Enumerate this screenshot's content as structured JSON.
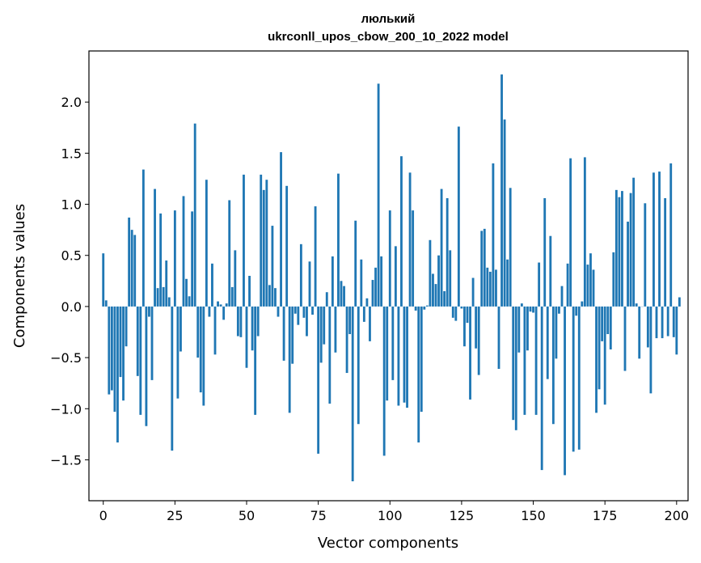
{
  "chart_data": {
    "type": "bar",
    "title_line1": "люлький",
    "title_line2": "ukrconll_upos_cbow_200_10_2022 model",
    "xlabel": "Vector components",
    "ylabel": "Components values",
    "xlim": [
      -5,
      204
    ],
    "ylim": [
      -1.9,
      2.5
    ],
    "xticks": [
      0,
      25,
      50,
      75,
      100,
      125,
      150,
      175,
      200
    ],
    "xtick_labels": [
      "0",
      "25",
      "50",
      "75",
      "100",
      "125",
      "150",
      "175",
      "200"
    ],
    "yticks": [
      -1.5,
      -1.0,
      -0.5,
      0.0,
      0.5,
      1.0,
      1.5,
      2.0
    ],
    "ytick_labels": [
      "−1.5",
      "−1.0",
      "−0.5",
      "0.0",
      "0.5",
      "1.0",
      "1.5",
      "2.0"
    ],
    "bar_color": "#1f77b4",
    "grid": false,
    "values": [
      0.52,
      0.06,
      -0.86,
      -0.82,
      -1.03,
      -1.33,
      -0.69,
      -0.92,
      -0.39,
      0.87,
      0.75,
      0.7,
      -0.68,
      -1.06,
      1.34,
      -1.17,
      -0.1,
      -0.72,
      1.15,
      0.18,
      0.91,
      0.19,
      0.45,
      0.09,
      -1.41,
      0.94,
      -0.9,
      -0.44,
      1.08,
      0.27,
      0.1,
      0.93,
      1.79,
      -0.5,
      -0.84,
      -0.97,
      1.24,
      -0.1,
      0.42,
      -0.47,
      0.05,
      0.02,
      -0.13,
      0.03,
      1.04,
      0.19,
      0.55,
      -0.29,
      -0.3,
      1.29,
      -0.6,
      0.3,
      -0.43,
      -1.06,
      -0.29,
      1.29,
      1.14,
      1.24,
      0.21,
      0.79,
      0.18,
      -0.1,
      1.51,
      -0.53,
      1.18,
      -1.04,
      -0.56,
      -0.07,
      -0.18,
      0.61,
      -0.11,
      -0.29,
      0.44,
      -0.08,
      0.98,
      -1.44,
      -0.55,
      -0.37,
      0.14,
      -0.95,
      0.49,
      -0.45,
      1.3,
      0.25,
      0.2,
      -0.65,
      -0.27,
      -1.71,
      0.84,
      -1.15,
      0.46,
      -0.15,
      0.08,
      -0.34,
      0.26,
      0.38,
      2.18,
      0.49,
      -1.46,
      -0.92,
      0.94,
      -0.72,
      0.59,
      -0.97,
      1.47,
      -0.94,
      -0.99,
      1.31,
      0.94,
      -0.04,
      -1.33,
      -1.03,
      -0.03,
      0.01,
      0.65,
      0.32,
      0.22,
      0.5,
      1.15,
      0.15,
      1.06,
      0.55,
      -0.11,
      -0.14,
      1.76,
      -0.02,
      -0.39,
      -0.16,
      -0.91,
      0.28,
      -0.41,
      -0.67,
      0.74,
      0.76,
      0.38,
      0.34,
      1.4,
      0.36,
      -0.61,
      2.27,
      1.83,
      0.46,
      1.16,
      -1.11,
      -1.21,
      -0.45,
      0.03,
      -1.06,
      -0.43,
      -0.05,
      -0.06,
      -1.06,
      0.43,
      -1.6,
      1.06,
      -0.71,
      0.69,
      -1.15,
      -0.51,
      -0.07,
      0.2,
      -1.65,
      0.42,
      1.45,
      -1.42,
      -0.09,
      -1.4,
      0.05,
      1.46,
      0.41,
      0.52,
      0.36,
      -1.04,
      -0.81,
      -0.34,
      -0.96,
      -0.27,
      -0.42,
      0.53,
      1.14,
      1.07,
      1.13,
      -0.63,
      0.83,
      1.11,
      1.26,
      0.03,
      -0.51,
      0.0,
      1.01,
      -0.4,
      -0.85,
      1.31,
      -0.31,
      1.32,
      -0.31,
      1.06,
      -0.29,
      1.4,
      -0.3,
      -0.47,
      0.09
    ]
  }
}
